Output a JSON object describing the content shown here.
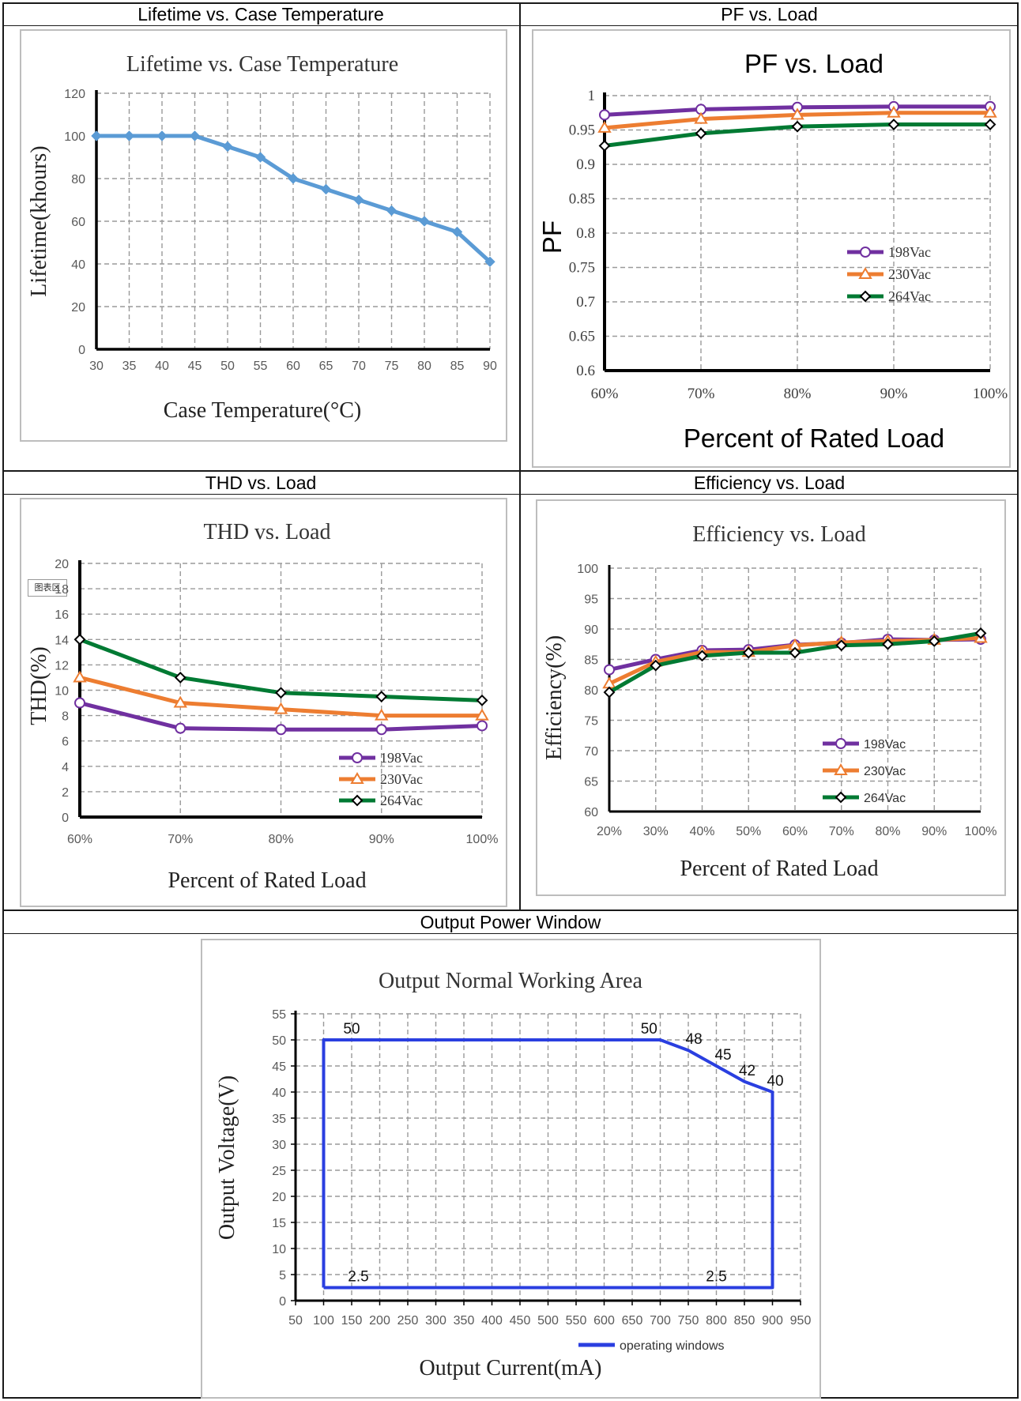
{
  "headers": {
    "lifetime": "Lifetime vs. Case Temperature",
    "pf": "PF vs. Load",
    "thd": "THD vs. Load",
    "efficiency": "Efficiency vs. Load",
    "window": "Output Power Window"
  },
  "thd_tag": "图表区",
  "chart_data": [
    {
      "id": "lifetime",
      "type": "line",
      "title": "Lifetime vs. Case Temperature",
      "xlabel": "Case Temperature(°C)",
      "ylabel": "Lifetime(khours)",
      "xlim": [
        30,
        90
      ],
      "ylim": [
        0,
        120
      ],
      "x_ticks": [
        "30",
        "35",
        "40",
        "45",
        "50",
        "55",
        "60",
        "65",
        "70",
        "75",
        "80",
        "85",
        "90"
      ],
      "y_ticks": [
        "0",
        "20",
        "40",
        "60",
        "80",
        "100",
        "120"
      ],
      "grid": true,
      "color": "#5b9bd5",
      "series": [
        {
          "x": [
            30,
            35,
            40,
            45,
            50,
            55,
            60,
            65,
            70,
            75,
            80,
            85,
            90
          ],
          "values": [
            100,
            100,
            100,
            100,
            95,
            90,
            80,
            75,
            70,
            65,
            60,
            55,
            41
          ]
        }
      ]
    },
    {
      "id": "pf",
      "type": "line",
      "title": "PF vs. Load",
      "xlabel": "Percent of Rated Load",
      "ylabel": "PF",
      "ylim": [
        0.6,
        1
      ],
      "categories": [
        "60%",
        "70%",
        "80%",
        "90%",
        "100%"
      ],
      "y_ticks": [
        "0.6",
        "0.65",
        "0.7",
        "0.75",
        "0.8",
        "0.85",
        "0.9",
        "0.95",
        "1"
      ],
      "grid": true,
      "legend": "right",
      "series": [
        {
          "name": "198Vac",
          "color": "#7030a0",
          "marker": "circle",
          "values": [
            0.972,
            0.98,
            0.983,
            0.984,
            0.984
          ]
        },
        {
          "name": "230Vac",
          "color": "#ed7d31",
          "marker": "triangle",
          "values": [
            0.953,
            0.966,
            0.972,
            0.975,
            0.975
          ]
        },
        {
          "name": "264Vac",
          "color": "#007a33",
          "marker": "diamond",
          "values": [
            0.927,
            0.945,
            0.955,
            0.958,
            0.958
          ]
        }
      ]
    },
    {
      "id": "thd",
      "type": "line",
      "title": "THD vs. Load",
      "xlabel": "Percent of Rated Load",
      "ylabel": "THD(%)",
      "ylim": [
        0,
        20
      ],
      "categories": [
        "60%",
        "70%",
        "80%",
        "90%",
        "100%"
      ],
      "y_ticks": [
        "0",
        "2",
        "4",
        "6",
        "8",
        "10",
        "12",
        "14",
        "16",
        "18",
        "20"
      ],
      "grid": true,
      "legend": "bottom-right",
      "series": [
        {
          "name": "198Vac",
          "color": "#7030a0",
          "marker": "circle",
          "values": [
            9,
            7,
            6.9,
            6.9,
            7.2
          ]
        },
        {
          "name": "230Vac",
          "color": "#ed7d31",
          "marker": "triangle",
          "values": [
            11,
            9,
            8.5,
            8,
            8
          ]
        },
        {
          "name": "264Vac",
          "color": "#007a33",
          "marker": "diamond",
          "values": [
            14,
            11,
            9.8,
            9.5,
            9.2
          ]
        }
      ]
    },
    {
      "id": "efficiency",
      "type": "line",
      "title": "Efficiency vs. Load",
      "xlabel": "Percent of Rated Load",
      "ylabel": "Efficiency(%)",
      "ylim": [
        60,
        100
      ],
      "categories": [
        "20%",
        "30%",
        "40%",
        "50%",
        "60%",
        "70%",
        "80%",
        "90%",
        "100%"
      ],
      "y_ticks": [
        "60",
        "65",
        "70",
        "75",
        "80",
        "85",
        "90",
        "95",
        "100"
      ],
      "grid": true,
      "legend": "bottom-right",
      "series": [
        {
          "name": "198Vac",
          "color": "#7030a0",
          "marker": "circle",
          "values": [
            83.3,
            85,
            86.5,
            86.6,
            87.4,
            87.7,
            88.3,
            88.2,
            88.3
          ]
        },
        {
          "name": "230Vac",
          "color": "#ed7d31",
          "marker": "triangle",
          "values": [
            81,
            84.6,
            86.2,
            86.2,
            87.3,
            87.8,
            88,
            88.2,
            88.5
          ]
        },
        {
          "name": "264Vac",
          "color": "#007a33",
          "marker": "diamond",
          "values": [
            79.6,
            84,
            85.6,
            86.1,
            86.1,
            87.3,
            87.5,
            88,
            89.3
          ]
        }
      ]
    },
    {
      "id": "window",
      "type": "line",
      "title": "Output Normal Working Area",
      "xlabel": "Output Current(mA)",
      "ylabel": "Output Voltage(V)",
      "xlim": [
        50,
        950
      ],
      "ylim": [
        0,
        55
      ],
      "x_ticks": [
        "50",
        "100",
        "150",
        "200",
        "250",
        "300",
        "350",
        "400",
        "450",
        "500",
        "550",
        "600",
        "650",
        "700",
        "750",
        "800",
        "850",
        "900",
        "950"
      ],
      "y_ticks": [
        "0",
        "5",
        "10",
        "15",
        "20",
        "25",
        "30",
        "35",
        "40",
        "45",
        "50",
        "55"
      ],
      "grid": true,
      "legend": "bottom-right",
      "series": [
        {
          "name": "operating windows",
          "color": "#2a3fe0",
          "x": [
            100,
            100,
            700,
            750,
            800,
            850,
            900,
            900,
            100
          ],
          "values": [
            2.5,
            50,
            50,
            48,
            45,
            42,
            40,
            2.5,
            2.5
          ]
        }
      ],
      "annotations": [
        {
          "text": "50",
          "x": 150,
          "y": 50
        },
        {
          "text": "50",
          "x": 680,
          "y": 50
        },
        {
          "text": "48",
          "x": 760,
          "y": 48
        },
        {
          "text": "45",
          "x": 812,
          "y": 45
        },
        {
          "text": "42",
          "x": 855,
          "y": 42
        },
        {
          "text": "40",
          "x": 905,
          "y": 40
        },
        {
          "text": "2.5",
          "x": 162,
          "y": 2.5
        },
        {
          "text": "2.5",
          "x": 800,
          "y": 2.5
        }
      ]
    }
  ]
}
